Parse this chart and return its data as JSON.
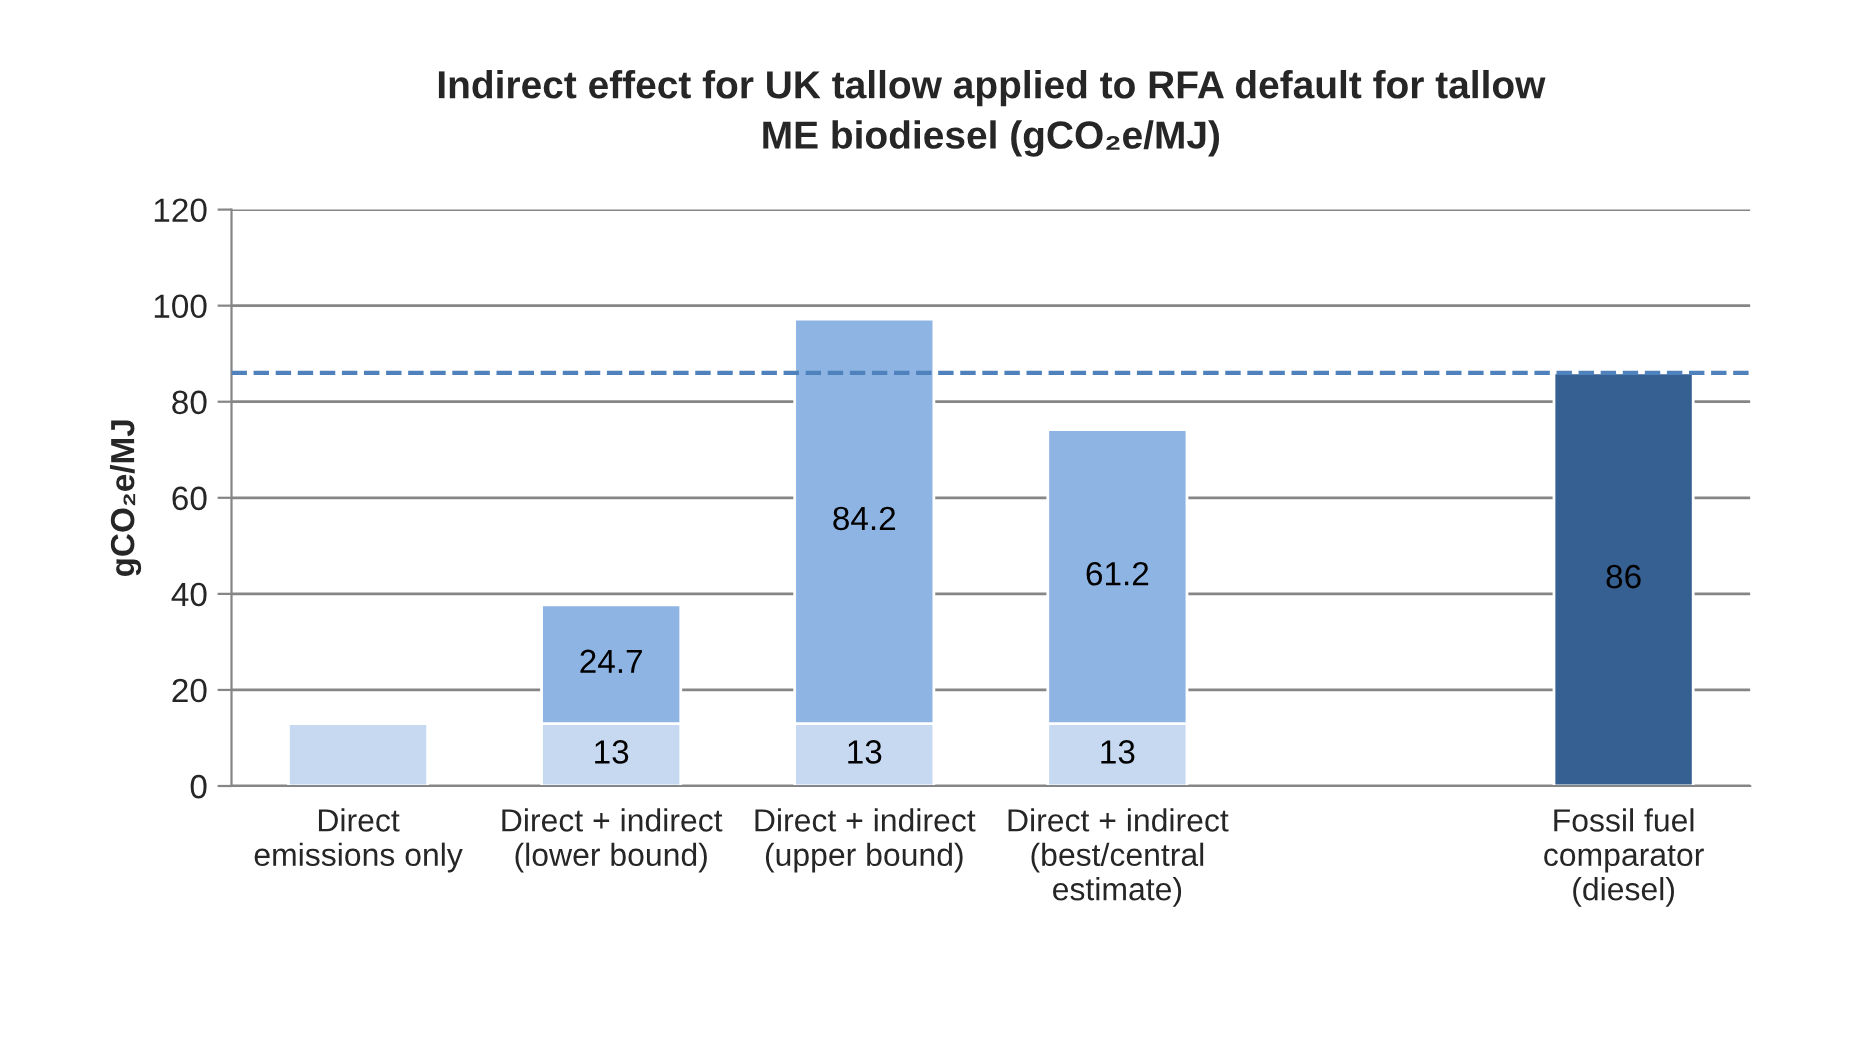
{
  "chart_data": {
    "type": "bar",
    "title": "Indirect effect for UK tallow applied to RFA default for tallow ME biodiesel (gCO₂e/MJ)",
    "ylabel": "gCO₂e/MJ",
    "categories": [
      "Direct emissions only",
      "Direct + indirect (lower bound)",
      "Direct + indirect (upper bound)",
      "Direct + indirect (best/central estimate)",
      null,
      "Fossil fuel comparator (diesel)"
    ],
    "stacked": true,
    "series": [
      {
        "colors": [
          "#c6d9f1",
          "#c6d9f1",
          "#c6d9f1",
          "#c6d9f1",
          "#c6d9f1",
          "#c6d9f1"
        ],
        "values": [
          13,
          13,
          13,
          13,
          null,
          null
        ],
        "value_labels": [
          null,
          "13",
          "13",
          "13",
          null,
          null
        ]
      },
      {
        "colors": [
          "#8eb4e3",
          "#8eb4e3",
          "#8eb4e3",
          "#8eb4e3",
          "#8eb4e3",
          "#376092"
        ],
        "values": [
          null,
          24.7,
          84.2,
          61.2,
          null,
          86
        ],
        "value_labels": [
          null,
          "24.7",
          "84.2",
          "61.2",
          null,
          "86"
        ]
      }
    ],
    "ref_lines": [
      {
        "axis": "y",
        "value": 86,
        "color": "#4f81bd",
        "line_style": "dashed"
      }
    ],
    "ylim": [
      0,
      120
    ],
    "yticks": [
      0,
      20,
      40,
      60,
      80,
      100,
      120
    ],
    "grid": "y"
  }
}
